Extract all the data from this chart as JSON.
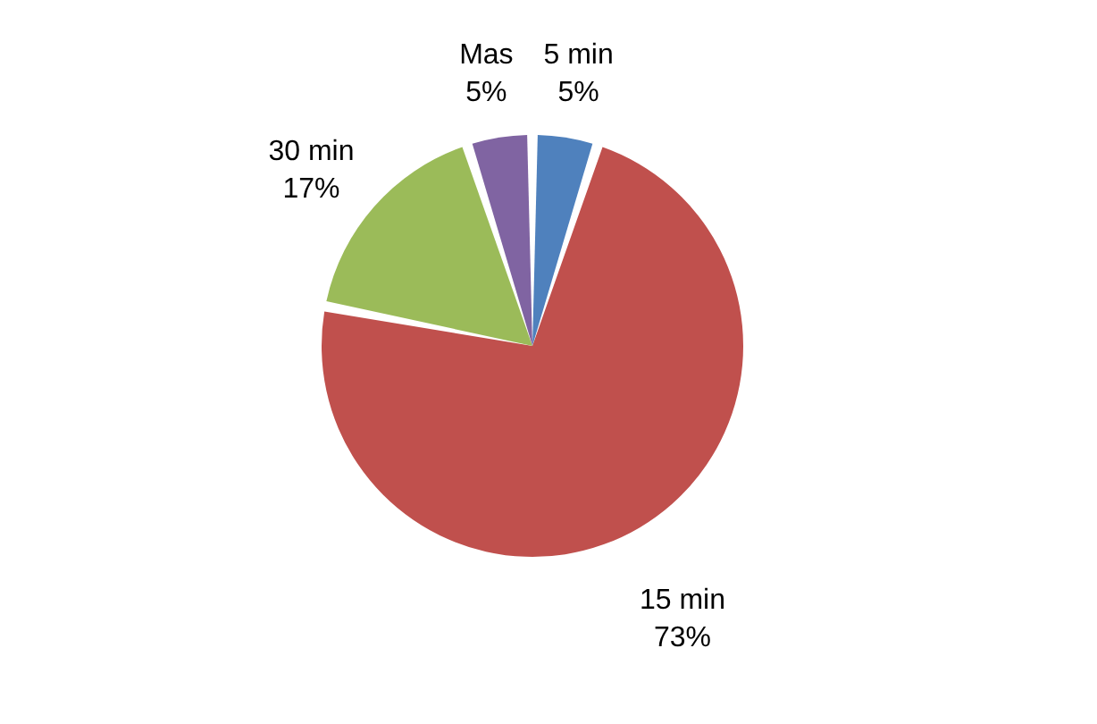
{
  "chart_data": {
    "type": "pie",
    "categories": [
      "5 min",
      "15 min",
      "30 min",
      "Mas"
    ],
    "values": [
      5,
      73,
      17,
      5
    ],
    "colors": [
      "#4f81bd",
      "#c0504d",
      "#9bbb59",
      "#8064a2"
    ],
    "value_labels": [
      "5%",
      "73%",
      "17%",
      "5%"
    ],
    "legend": false
  }
}
